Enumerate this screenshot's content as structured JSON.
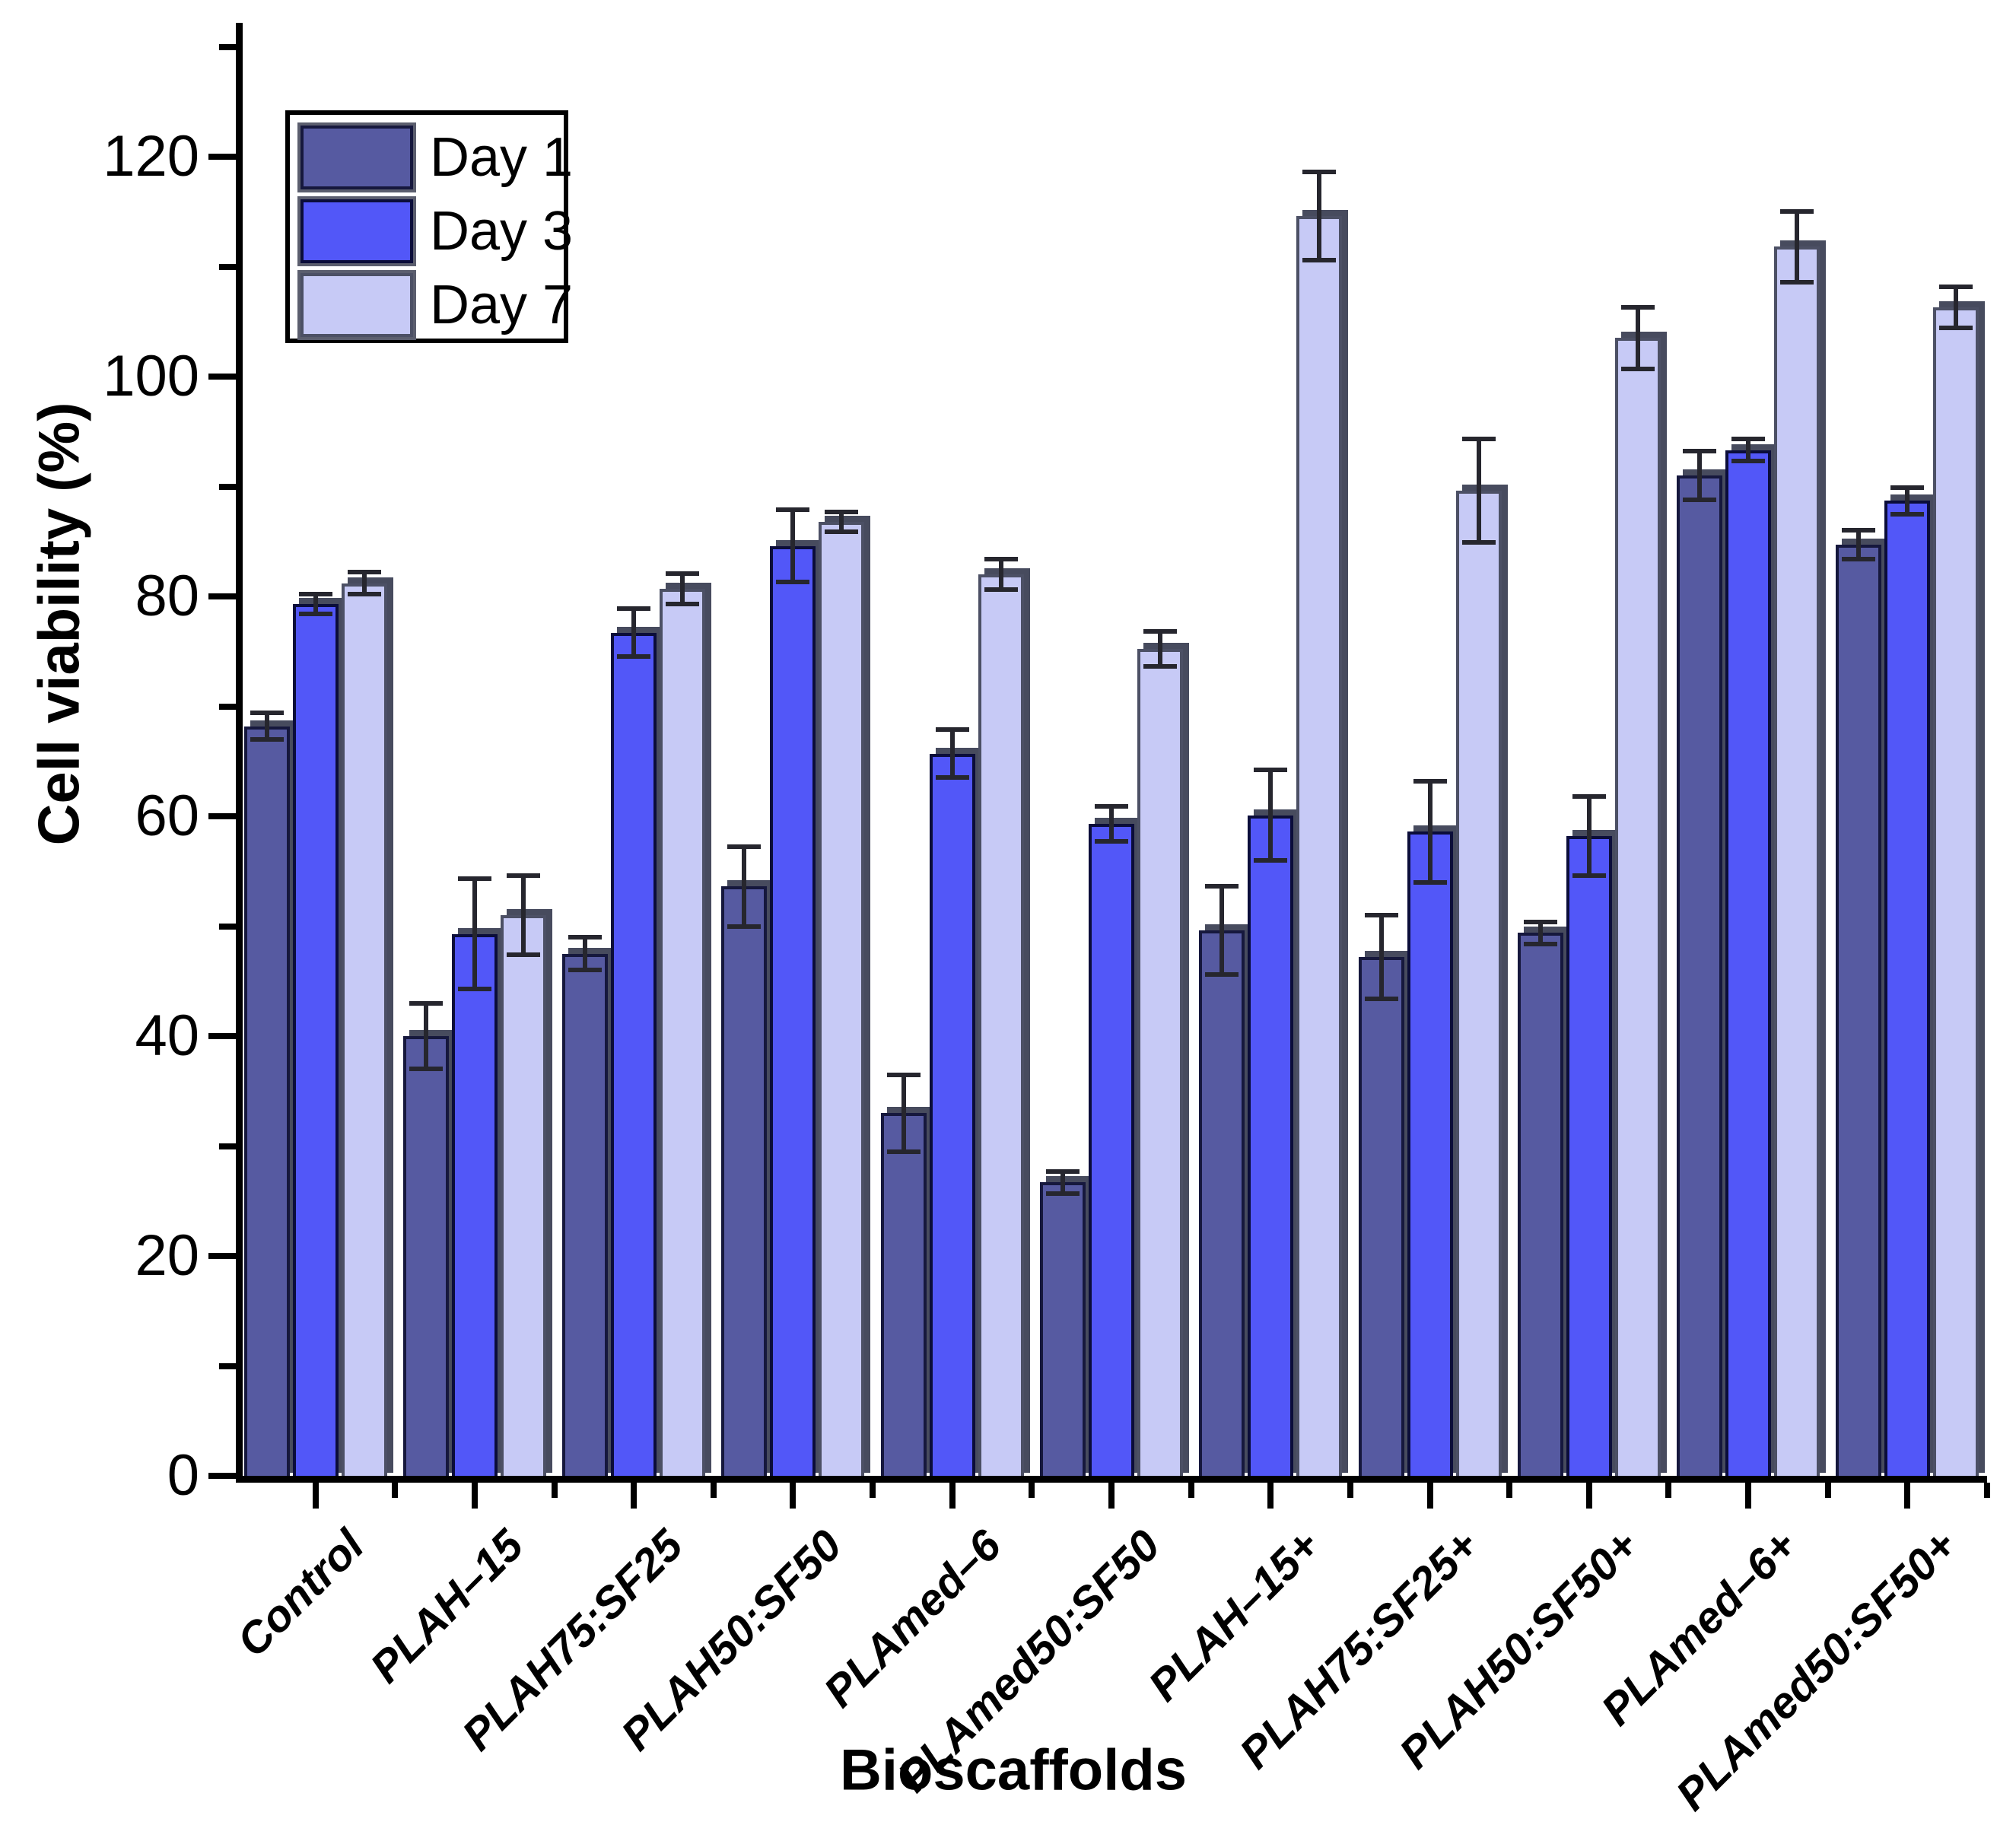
{
  "axes": {
    "x_title": "Bioscaffolds",
    "y_title": "Cell viability (%)"
  },
  "chart_data": {
    "type": "bar",
    "title": "",
    "xlabel": "Bioscaffolds",
    "ylabel": "Cell viability (%)",
    "ylim": [
      0,
      130
    ],
    "y_major_ticks": [
      0,
      20,
      40,
      60,
      80,
      100,
      120
    ],
    "y_minor_ticks": [
      10,
      30,
      50,
      70,
      90,
      110,
      130
    ],
    "grid": false,
    "legend_position": "top-left-inside",
    "categories": [
      "Control",
      "PLAH–15",
      "PLAH75:SF25",
      "PLAH50:SF50",
      "PLAmed–6",
      "PLAmed50:SF50",
      "PLAH–15+",
      "PLAH75:SF25+",
      "PLAH50:SF50+",
      "PLAmed–6+",
      "PLAmed50:SF50+"
    ],
    "series": [
      {
        "name": "Day 1",
        "color": "#565AA1",
        "border": "#16183D",
        "values": [
          68.2,
          40.0,
          47.5,
          53.6,
          33.0,
          26.7,
          49.6,
          47.2,
          49.4,
          91.0,
          84.7
        ],
        "errors": [
          1.2,
          3.0,
          1.5,
          3.6,
          3.5,
          1.0,
          4.0,
          3.8,
          1.0,
          2.2,
          1.3
        ]
      },
      {
        "name": "Day 3",
        "color": "#5257F8",
        "border": "#0B0D3A",
        "values": [
          79.3,
          49.3,
          76.7,
          84.6,
          65.7,
          59.3,
          60.1,
          58.6,
          58.2,
          93.3,
          88.7
        ],
        "errors": [
          0.9,
          5.0,
          2.2,
          3.3,
          2.2,
          1.6,
          4.1,
          4.6,
          3.6,
          1.0,
          1.2
        ]
      },
      {
        "name": "Day 7",
        "color": "#C7CAF6",
        "border": "#4C5065",
        "values": [
          81.2,
          51.0,
          80.7,
          86.8,
          82.0,
          75.2,
          114.6,
          89.6,
          103.5,
          111.8,
          106.3
        ],
        "errors": [
          1.0,
          3.6,
          1.4,
          0.9,
          1.4,
          1.6,
          4.0,
          4.7,
          2.8,
          3.2,
          1.9
        ]
      }
    ]
  },
  "style": {
    "background": "#FFFFFF",
    "axis_color": "#000000",
    "errorbar_color": "#26262E",
    "bar_shadow": "#474B5E",
    "legend_swatch_ring": "#5B5E6E",
    "text_color": "#000000"
  }
}
